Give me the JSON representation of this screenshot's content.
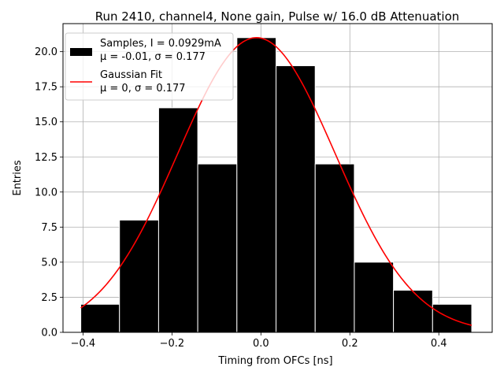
{
  "chart_data": {
    "type": "bar",
    "title": "Run 2410, channel4, None gain, Pulse w/ 16.0 dB Attenuation",
    "xlabel": "Timing from OFCs [ns]",
    "ylabel": "Entries",
    "xlim": [
      -0.445,
      0.52
    ],
    "ylim": [
      0,
      22
    ],
    "xticks": [
      -0.4,
      -0.2,
      0.0,
      0.2,
      0.4
    ],
    "xtick_labels": [
      "−0.4",
      "−0.2",
      "0.0",
      "0.2",
      "0.4"
    ],
    "yticks": [
      0.0,
      2.5,
      5.0,
      7.5,
      10.0,
      12.5,
      15.0,
      17.5,
      20.0
    ],
    "ytick_labels": [
      "0.0",
      "2.5",
      "5.0",
      "7.5",
      "10.0",
      "12.5",
      "15.0",
      "17.5",
      "20.0"
    ],
    "grid": true,
    "legend_position": "top-left",
    "bins": [
      {
        "left": -0.405,
        "right": -0.318,
        "count": 2
      },
      {
        "left": -0.318,
        "right": -0.23,
        "count": 8
      },
      {
        "left": -0.23,
        "right": -0.142,
        "count": 16
      },
      {
        "left": -0.142,
        "right": -0.054,
        "count": 12
      },
      {
        "left": -0.054,
        "right": 0.034,
        "count": 21
      },
      {
        "left": 0.034,
        "right": 0.122,
        "count": 19
      },
      {
        "left": 0.122,
        "right": 0.21,
        "count": 12
      },
      {
        "left": 0.21,
        "right": 0.298,
        "count": 5
      },
      {
        "left": 0.298,
        "right": 0.386,
        "count": 3
      },
      {
        "left": 0.386,
        "right": 0.474,
        "count": 2
      }
    ],
    "series": [
      {
        "name": "Samples, I = 0.0929mA",
        "detail": "μ = -0.01, σ = 0.177",
        "kind": "histogram",
        "color": "#000000"
      },
      {
        "name": "Gaussian Fit",
        "detail": "μ = 0, σ = 0.177",
        "kind": "line",
        "color": "#ff0000",
        "amplitude": 21.0,
        "mu": -0.01,
        "sigma": 0.177,
        "x_range": [
          -0.405,
          0.474
        ]
      }
    ]
  }
}
